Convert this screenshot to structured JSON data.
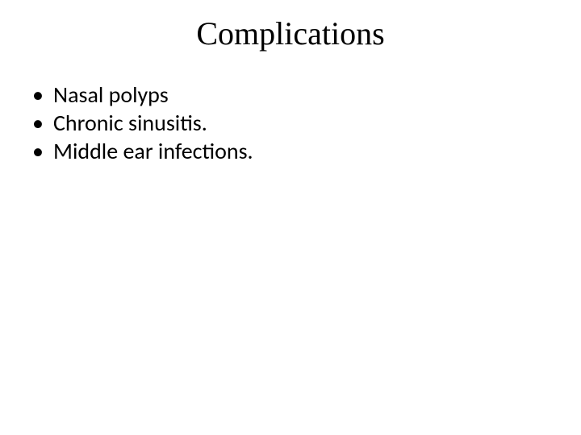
{
  "slide": {
    "background_color": "#ffffff",
    "text_color": "#000000",
    "title": {
      "text": "Complications",
      "font_family": "Times New Roman",
      "font_size_pt": 40,
      "align": "center"
    },
    "body": {
      "font_family": "Calibri",
      "font_size_pt": 28,
      "bullet_char": "•",
      "items": [
        "Nasal polyps",
        "Chronic sinusitis.",
        "Middle ear infections."
      ]
    }
  }
}
